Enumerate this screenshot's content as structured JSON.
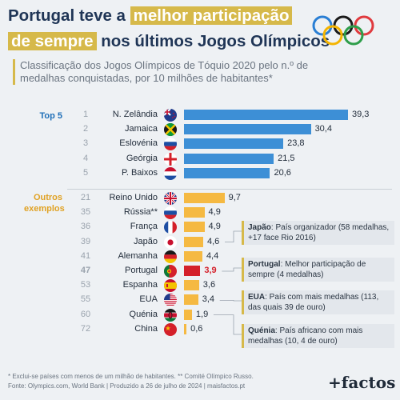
{
  "title": {
    "line1_pre": "Portugal teve a ",
    "line1_highlight": "melhor participação",
    "line2_highlight": "de sempre",
    "line2_post": " nos últimos Jogos Olímpicos"
  },
  "subtitle": "Classificação dos Jogos Olímpicos de Tóquio 2020 pelo n.º de medalhas conquistadas, por 10 milhões de habitantes*",
  "sections": {
    "top": "Top 5",
    "others": "Outros exemplos"
  },
  "colors": {
    "top_bar": "#3d8fd6",
    "other_bar": "#f5b942",
    "portugal_bar": "#d4202a",
    "title_highlight": "#d6b94a",
    "title_text": "#1f3556"
  },
  "chart_data": {
    "type": "bar",
    "orientation": "horizontal",
    "unit": "medalhas por 10 milhões de habitantes",
    "categories": [
      "N. Zelândia",
      "Jamaica",
      "Eslovénia",
      "Geórgia",
      "P. Baixos",
      "Reino Unido",
      "Rússia**",
      "França",
      "Japão",
      "Alemanha",
      "Portugal",
      "Espanha",
      "EUA",
      "Quénia",
      "China"
    ],
    "ranks": [
      "1",
      "2",
      "3",
      "4",
      "5",
      "21",
      "35",
      "36",
      "39",
      "41",
      "47",
      "53",
      "55",
      "60",
      "72"
    ],
    "values": [
      39.3,
      30.4,
      23.8,
      21.5,
      20.6,
      9.7,
      4.9,
      4.9,
      4.6,
      4.4,
      3.9,
      3.6,
      3.4,
      1.9,
      0.6
    ],
    "value_labels": [
      "39,3",
      "30,4",
      "23,8",
      "21,5",
      "20,6",
      "9,7",
      "4,9",
      "4,9",
      "4,6",
      "4,4",
      "3,9",
      "3,6",
      "3,4",
      "1,9",
      "0,6"
    ],
    "groups": [
      "top",
      "top",
      "top",
      "top",
      "top",
      "other",
      "other",
      "other",
      "other",
      "other",
      "other",
      "other",
      "other",
      "other",
      "other"
    ],
    "highlight": "Portugal",
    "flags": [
      "flag-new-zealand-icon",
      "flag-jamaica-icon",
      "flag-slovenia-icon",
      "flag-georgia-icon",
      "flag-netherlands-icon",
      "flag-united-kingdom-icon",
      "flag-russia-icon",
      "flag-france-icon",
      "flag-japan-icon",
      "flag-germany-icon",
      "flag-portugal-icon",
      "flag-spain-icon",
      "flag-usa-icon",
      "flag-kenya-icon",
      "flag-china-icon"
    ],
    "xlim": [
      0,
      39.3
    ]
  },
  "notes": [
    {
      "country": "Japão",
      "bold": "Japão",
      "text": ": País organizador (58 medalhas, +17 face Rio 2016)"
    },
    {
      "country": "Portugal",
      "bold": "Portugal",
      "text": ": Melhor participação de sempre (4 medalhas)"
    },
    {
      "country": "EUA",
      "bold": "EUA",
      "text": ": País com mais medalhas (113, das quais 39 de ouro)"
    },
    {
      "country": "Quénia",
      "bold": "Quénia",
      "text": ": País africano com mais medalhas (10, 4 de ouro)"
    }
  ],
  "footer": {
    "line1": "* Exclui-se países com menos de um milhão de habitantes. ** Comité Olímpico Russo.",
    "line2": "Fonte: Olympics.com, World Bank | Produzido a 26 de julho de 2024 | maisfactos.pt"
  },
  "logo": "+factos"
}
